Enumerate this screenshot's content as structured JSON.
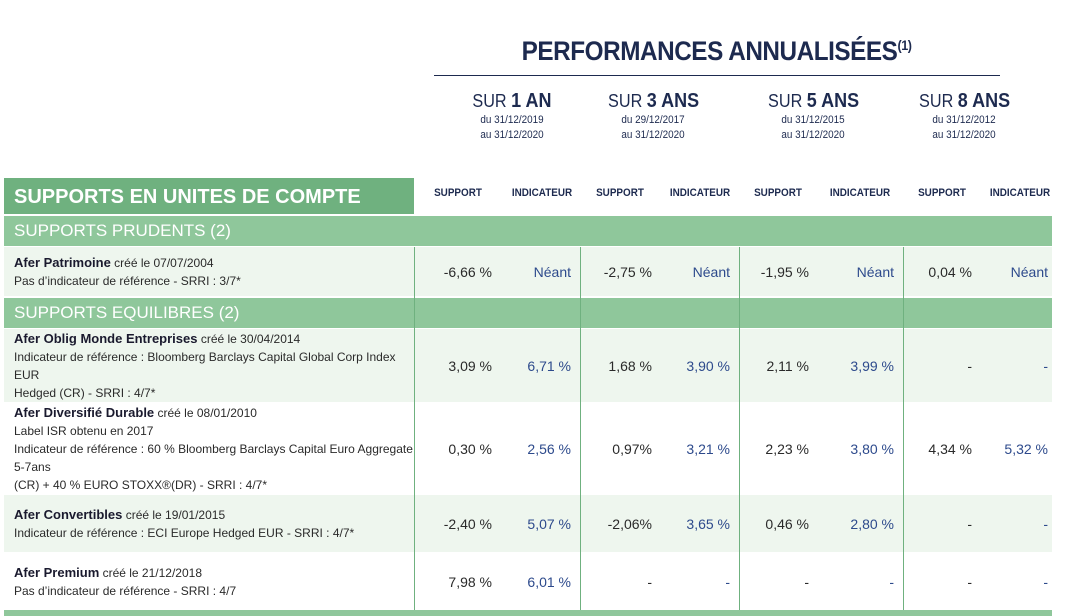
{
  "title": {
    "text": "PERFORMANCES ANNUALISÉES",
    "note": "(1)"
  },
  "periods": [
    {
      "prefix": "SUR",
      "bold": "1 AN",
      "from": "du 31/12/2019",
      "to": "au 31/12/2020"
    },
    {
      "prefix": "SUR",
      "bold": "3 ANS",
      "from": "du 29/12/2017",
      "to": "au 31/12/2020"
    },
    {
      "prefix": "SUR",
      "bold": "5 ANS",
      "from": "du 31/12/2015",
      "to": "au 31/12/2020"
    },
    {
      "prefix": "SUR",
      "bold": "8 ANS",
      "from": "du 31/12/2012",
      "to": "au 31/12/2020"
    }
  ],
  "col_headers": {
    "support": "SUPPORT",
    "indicateur": "INDICATEUR"
  },
  "uc_header": "SUPPORTS EN UNITES DE COMPTE",
  "sections": [
    {
      "label": "SUPPORTS PRUDENTS (2)"
    },
    {
      "label": "SUPPORTS EQUILIBRES (2)"
    }
  ],
  "rows": [
    {
      "name": "Afer Patrimoine",
      "created": " créé le 07/07/2004",
      "lines": [
        "Pas d’indicateur de référence - SRRI : 3/7*"
      ],
      "values": [
        "-6,66 %",
        "Néant",
        "-2,75 %",
        "Néant",
        "-1,95 %",
        "Néant",
        "0,04 %",
        "Néant"
      ]
    },
    {
      "name": "Afer Oblig Monde Entreprises",
      "created": " créé le 30/04/2014",
      "lines": [
        "Indicateur de référence : Bloomberg Barclays Capital Global Corp Index EUR",
        "Hedged (CR) - SRRI : 4/7*"
      ],
      "values": [
        "3,09 %",
        "6,71 %",
        "1,68 %",
        "3,90 %",
        "2,11 %",
        "3,99 %",
        "-",
        "-"
      ]
    },
    {
      "name": "Afer Diversifié Durable",
      "created": " créé le 08/01/2010",
      "lines": [
        "Label ISR obtenu en 2017",
        "Indicateur de référence : 60 % Bloomberg Barclays Capital Euro Aggregate 5-7ans",
        "(CR) + 40 % EURO STOXX®(DR) - SRRI : 4/7*"
      ],
      "values": [
        "0,30 %",
        "2,56 %",
        "0,97%",
        "3,21 %",
        "2,23 %",
        "3,80 %",
        "4,34 %",
        "5,32 %"
      ]
    },
    {
      "name": "Afer Convertibles",
      "created": " créé le 19/01/2015",
      "lines": [
        "Indicateur de référence :  ECI Europe Hedged EUR  - SRRI : 4/7*"
      ],
      "values": [
        "-2,40 %",
        "5,07 %",
        "-2,06%",
        "3,65 %",
        "0,46 %",
        "2,80 %",
        "-",
        "-"
      ]
    },
    {
      "name": "Afer Premium",
      "created": " créé le 21/12/2018",
      "lines": [
        "Pas d’indicateur de référence - SRRI : 4/7"
      ],
      "values": [
        "7,98 %",
        "6,01 %",
        "-",
        "-",
        "-",
        "-",
        "-",
        "-"
      ]
    }
  ],
  "colors": {
    "dark_green": "#6fb17f",
    "mid_green": "#8fc79b",
    "row_tint": "#eef6ee",
    "navy": "#1d2a4f",
    "blue_value": "#2d4a8c"
  }
}
